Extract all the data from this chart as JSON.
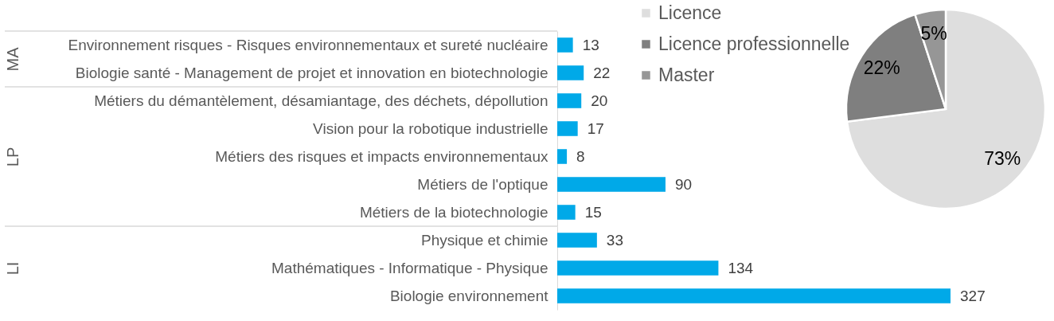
{
  "chart_data": [
    {
      "type": "bar",
      "orientation": "horizontal",
      "ylabel": "MA",
      "categories": [
        "Environnement risques - Risques environnementaux et sureté nucléaire",
        "Biologie santé - Management de projet et innovation en biotechnologie"
      ],
      "values": [
        13,
        22
      ],
      "color": "#00a9e8",
      "data_labels": true
    },
    {
      "type": "bar",
      "orientation": "horizontal",
      "ylabel": "LP",
      "categories": [
        "Métiers du démantèlement, désamiantage, des déchets, dépollution",
        "Vision pour la robotique industrielle",
        "Métiers des risques et impacts environnementaux",
        "Métiers de l'optique",
        "Métiers de la biotechnologie"
      ],
      "values": [
        20,
        17,
        8,
        90,
        15
      ],
      "color": "#00a9e8",
      "data_labels": true
    },
    {
      "type": "bar",
      "orientation": "horizontal",
      "ylabel": "LI",
      "categories": [
        "Physique et chimie",
        "Mathématiques - Informatique - Physique",
        "Biologie environnement"
      ],
      "values": [
        33,
        134,
        327
      ],
      "color": "#00a9e8",
      "data_labels": true
    },
    {
      "type": "pie",
      "categories": [
        "Licence",
        "Licence professionnelle",
        "Master"
      ],
      "values": [
        73,
        22,
        5
      ],
      "colors": [
        "#dedede",
        "#7f7f7f",
        "#969696"
      ],
      "value_labels": [
        "73%",
        "22%",
        "5%"
      ],
      "legend": "top left"
    }
  ]
}
